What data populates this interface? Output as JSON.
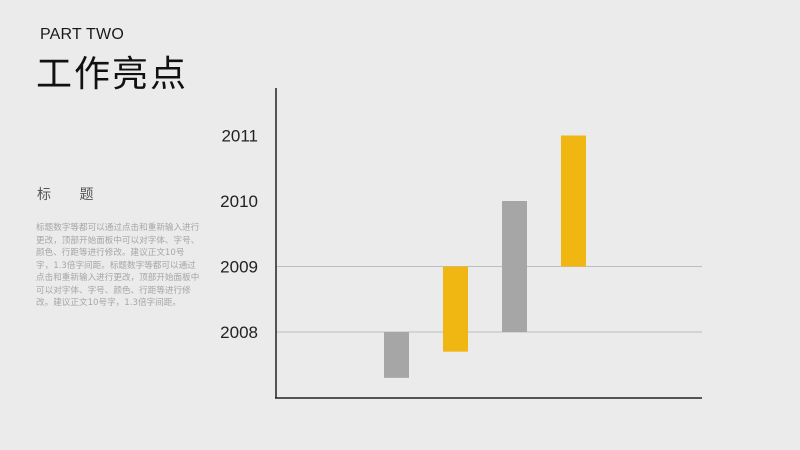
{
  "header": {
    "part": "PART TWO",
    "title": "工作亮点"
  },
  "sidebar": {
    "heading": "标 题",
    "body": "标题数字等都可以通过点击和重新输入进行更改，顶部开始面板中可以对字体、字号、颜色、行距等进行修改。建议正文10号字，1.3倍字间距。标题数字等都可以通过点击和重新输入进行更改，顶部开始面板中可以对字体、字号、颜色、行距等进行修改。建议正文10号字，1.3倍字间距。"
  },
  "chart_data": {
    "type": "bar",
    "subtype": "floating",
    "ylim": [
      2007,
      2011.9
    ],
    "yticks": [
      2008,
      2009,
      2010,
      2011
    ],
    "gridlines": [
      2008,
      2009
    ],
    "bars": [
      {
        "low": 2007.3,
        "high": 2008.0,
        "color": "#a6a6a6"
      },
      {
        "low": 2007.7,
        "high": 2009.0,
        "color": "#f0b713"
      },
      {
        "low": 2008.0,
        "high": 2010.0,
        "color": "#a6a6a6"
      },
      {
        "low": 2009.0,
        "high": 2011.0,
        "color": "#f0b713"
      }
    ]
  }
}
